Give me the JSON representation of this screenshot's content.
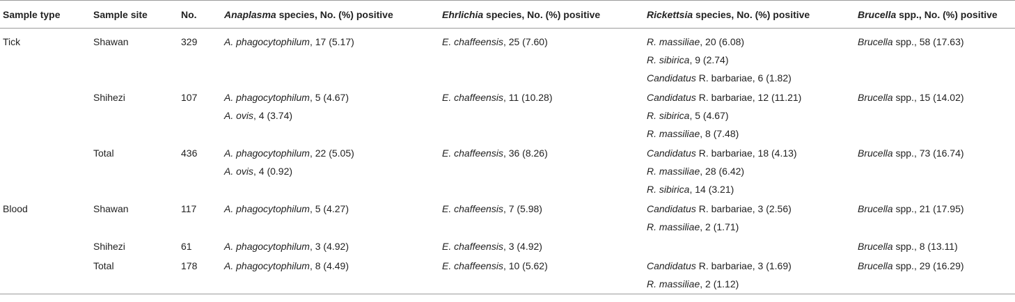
{
  "headers": [
    {
      "italic": "",
      "text": "Sample type"
    },
    {
      "italic": "",
      "text": "Sample site"
    },
    {
      "italic": "",
      "text": "No."
    },
    {
      "italic": "Anaplasma",
      "text": " species, No. (%) positive"
    },
    {
      "italic": "Ehrlichia",
      "text": " species, No. (%) positive"
    },
    {
      "italic": "Rickettsia",
      "text": " species, No. (%) positive"
    },
    {
      "italic": "Brucella",
      "text": " spp., No. (%) positive"
    }
  ],
  "rows": [
    {
      "type": "Tick",
      "site": "Shawan",
      "no": "329",
      "anaplasma": [
        {
          "i": "A. phagocytophilum",
          "t": ", 17 (5.17)"
        }
      ],
      "ehrlichia": [
        {
          "i": "E. chaffeensis",
          "t": ", 25 (7.60)"
        }
      ],
      "rickettsia": [
        {
          "i": "R. massiliae",
          "t": ", 20 (6.08)"
        },
        {
          "i": "R. sibirica",
          "t": ", 9 (2.74)"
        },
        {
          "i": "Candidatus",
          "t": " R. barbariae, 6 (1.82)"
        }
      ],
      "brucella": [
        {
          "i": "Brucella",
          "t": " spp., 58 (17.63)"
        }
      ]
    },
    {
      "type": "",
      "site": "Shihezi",
      "no": "107",
      "anaplasma": [
        {
          "i": "A. phagocytophilum",
          "t": ", 5 (4.67)"
        },
        {
          "i": "A. ovis",
          "t": ", 4 (3.74)"
        }
      ],
      "ehrlichia": [
        {
          "i": "E. chaffeensis",
          "t": ", 11 (10.28)"
        }
      ],
      "rickettsia": [
        {
          "i": "Candidatus",
          "t": " R. barbariae, 12 (11.21)"
        },
        {
          "i": "R. sibirica",
          "t": ", 5 (4.67)"
        },
        {
          "i": "R. massiliae",
          "t": ", 8 (7.48)"
        }
      ],
      "brucella": [
        {
          "i": "Brucella",
          "t": " spp., 15 (14.02)"
        }
      ]
    },
    {
      "type": "",
      "site": "Total",
      "no": "436",
      "anaplasma": [
        {
          "i": "A. phagocytophilum",
          "t": ", 22 (5.05)"
        },
        {
          "i": "A. ovis",
          "t": ", 4 (0.92)"
        }
      ],
      "ehrlichia": [
        {
          "i": "E. chaffeensis",
          "t": ", 36 (8.26)"
        }
      ],
      "rickettsia": [
        {
          "i": "Candidatus",
          "t": " R. barbariae, 18 (4.13)"
        },
        {
          "i": "R. massiliae",
          "t": ", 28 (6.42)"
        },
        {
          "i": "R. sibirica",
          "t": ", 14 (3.21)"
        }
      ],
      "brucella": [
        {
          "i": "Brucella",
          "t": " spp., 73 (16.74)"
        }
      ]
    },
    {
      "type": "Blood",
      "site": "Shawan",
      "no": "117",
      "anaplasma": [
        {
          "i": "A. phagocytophilum",
          "t": ", 5 (4.27)"
        }
      ],
      "ehrlichia": [
        {
          "i": "E. chaffeensis",
          "t": ", 7 (5.98)"
        }
      ],
      "rickettsia": [
        {
          "i": "Candidatus",
          "t": " R. barbariae, 3 (2.56)"
        },
        {
          "i": "R. massiliae",
          "t": ", 2 (1.71)"
        }
      ],
      "brucella": [
        {
          "i": "Brucella",
          "t": " spp., 21 (17.95)"
        }
      ]
    },
    {
      "type": "",
      "site": "Shihezi",
      "no": "61",
      "anaplasma": [
        {
          "i": "A. phagocytophilum",
          "t": ", 3 (4.92)"
        }
      ],
      "ehrlichia": [
        {
          "i": "E. chaffeensis",
          "t": ", 3 (4.92)"
        }
      ],
      "rickettsia": [],
      "brucella": [
        {
          "i": "Brucella",
          "t": " spp., 8 (13.11)"
        }
      ]
    },
    {
      "type": "",
      "site": "Total",
      "no": "178",
      "anaplasma": [
        {
          "i": "A. phagocytophilum",
          "t": ", 8 (4.49)"
        }
      ],
      "ehrlichia": [
        {
          "i": "E. chaffeensis",
          "t": ", 10 (5.62)"
        }
      ],
      "rickettsia": [
        {
          "i": "Candidatus",
          "t": " R. barbariae, 3 (1.69)"
        },
        {
          "i": "R. massiliae",
          "t": ", 2 (1.12)"
        }
      ],
      "brucella": [
        {
          "i": "Brucella",
          "t": " spp., 29 (16.29)"
        }
      ]
    }
  ]
}
